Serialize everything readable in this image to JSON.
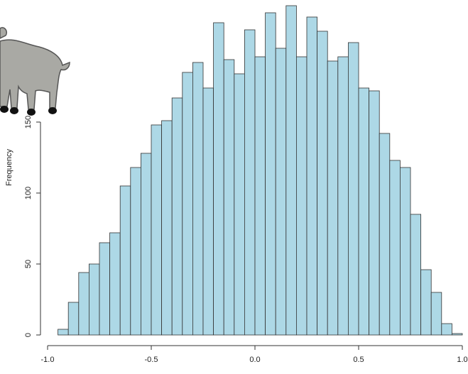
{
  "chart_data": {
    "type": "histogram",
    "y_label": "Frequency",
    "bins": [
      -0.95,
      -0.9,
      -0.85,
      -0.8,
      -0.75,
      -0.7,
      -0.65,
      -0.6,
      -0.55,
      -0.5,
      -0.45,
      -0.4,
      -0.35,
      -0.3,
      -0.25,
      -0.2,
      -0.15,
      -0.1,
      -0.05,
      0,
      0.05,
      0.1,
      0.15,
      0.2,
      0.25,
      0.3,
      0.35,
      0.4,
      0.45,
      0.5,
      0.55,
      0.6,
      0.65,
      0.7,
      0.75,
      0.8,
      0.85,
      0.9,
      0.95,
      1
    ],
    "counts": [
      4,
      23,
      44,
      50,
      65,
      72,
      105,
      118,
      128,
      148,
      151,
      167,
      185,
      192,
      174,
      220,
      194,
      184,
      215,
      196,
      227,
      202,
      232,
      196,
      224,
      214,
      193,
      196,
      206,
      174,
      172,
      142,
      123,
      118,
      85,
      46,
      30,
      8,
      1
    ],
    "color": "#add8e6",
    "xlim": [
      -1,
      1
    ],
    "xticks": [
      {
        "value": -1,
        "label": "-1.0"
      },
      -0.5,
      {
        "value": 0,
        "label": "0.0"
      },
      0.5,
      {
        "value": 1,
        "label": "1.0"
      }
    ],
    "ylim": [
      0,
      236
    ],
    "yticks": [
      0,
      50,
      100,
      150
    ]
  }
}
